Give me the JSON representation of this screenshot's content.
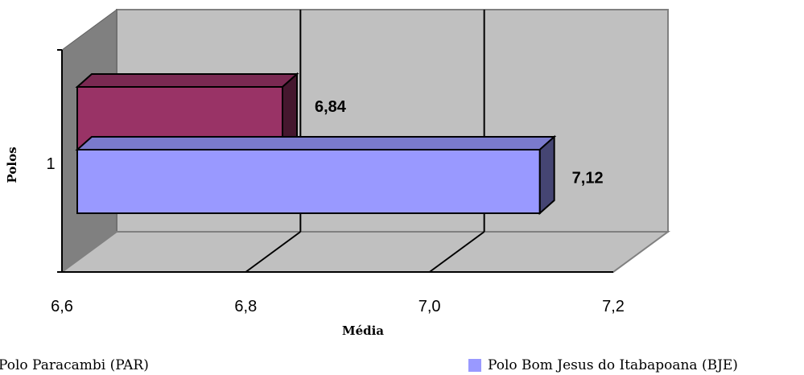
{
  "chart_data": {
    "type": "bar",
    "orientation": "horizontal",
    "three_d": true,
    "categories": [
      "1"
    ],
    "series": [
      {
        "name": "Polo Paracambi (PAR)",
        "values": [
          6.84
        ],
        "color": "#993366",
        "label": "6,84"
      },
      {
        "name": "Polo Bom Jesus do Itabapoana (BJE)",
        "values": [
          7.12
        ],
        "color": "#9999ff",
        "label": "7,12"
      }
    ],
    "xlabel": "Média",
    "ylabel": "Polos",
    "xlim": [
      6.6,
      7.2
    ],
    "x_ticks": [
      "6,6",
      "6,8",
      "7,0",
      "7,2"
    ],
    "grid": true,
    "legend_position": "bottom"
  }
}
